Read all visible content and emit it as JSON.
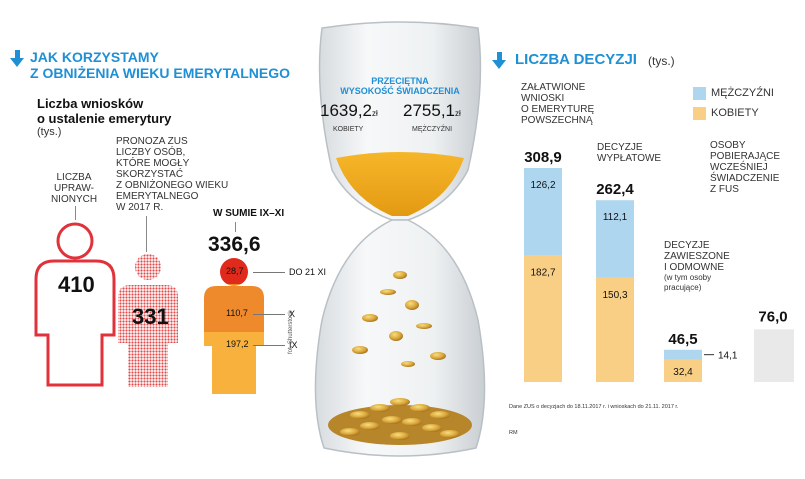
{
  "left_header": {
    "line1": "JAK KORZYSTAMY",
    "line2": "Z OBNIŻENIA WIEKU EMERYTALNEGO"
  },
  "applications": {
    "title_line1": "Liczba wniosków",
    "title_line2": "o ustalenie emerytury",
    "unit": "(tys.)",
    "entitled_label": [
      "LICZBA",
      "UPRAW-",
      "NIONYCH"
    ],
    "entitled_value": "410",
    "zus_label": [
      "PRONOZA ZUS",
      "LICZBY OSÓB,",
      "KTÓRE MOGŁY",
      "SKORZYSTAĆ",
      "Z OBNIŻONEGO WIEKU",
      "EMERYTALNEGO",
      "W 2017 R."
    ],
    "zus_value": "331",
    "sum_label": "W SUMIE IX–XI",
    "sum_value": "336,6",
    "months": [
      {
        "value": "28,7",
        "label": "DO 21 XI",
        "color": "#e02a1c"
      },
      {
        "value": "110,7",
        "label": "X",
        "color": "#ee8a2c"
      },
      {
        "value": "197,2",
        "label": "IX",
        "color": "#f7b13c"
      }
    ]
  },
  "benefit": {
    "title_line1": "PRZECIĘTNA",
    "title_line2": "WYSOKOŚĆ ŚWIADCZENIA",
    "women_value": "1639,2",
    "women_unit": "zł",
    "women_label": "KOBIETY",
    "men_value": "2755,1",
    "men_unit": "zł",
    "men_label": "MĘŻCZYŹNI",
    "photo_credit": "fot. Shutterstock"
  },
  "right_header": {
    "title": "LICZBA DECYZJI",
    "unit": "(tys.)"
  },
  "legend": [
    {
      "label": "MĘŻCZYŹNI",
      "color": "#aed6ef"
    },
    {
      "label": "KOBIETY",
      "color": "#f9cf86"
    }
  ],
  "chart_data": {
    "type": "bar",
    "stacked": true,
    "title": "LICZBA DECYZJI",
    "unit": "(tys.)",
    "series_names": [
      "MĘŻCZYŹNI",
      "KOBIETY"
    ],
    "bars": [
      {
        "label": [
          "ZAŁATWIONE",
          "WNIOSKI",
          "O EMERYTURĘ",
          "POWSZECHNĄ"
        ],
        "total": 308.9,
        "total_label": "308,9",
        "men": 126.2,
        "men_label": "126,2",
        "women": 182.7,
        "women_label": "182,7"
      },
      {
        "label": [
          "DECYZJE",
          "WYPŁATOWE"
        ],
        "total": 262.4,
        "total_label": "262,4",
        "men": 112.1,
        "men_label": "112,1",
        "women": 150.3,
        "women_label": "150,3"
      },
      {
        "label": [
          "DECYZJE",
          "ZAWIESZONE",
          "I ODMOWNE"
        ],
        "sublabel": [
          "(w tym osoby",
          "pracujące)"
        ],
        "total": 46.5,
        "total_label": "46,5",
        "men": 14.1,
        "men_label": "14,1",
        "women": 32.4,
        "women_label": "32,4"
      },
      {
        "label": [
          "OSOBY",
          "POBIERAJĄCE",
          "WCZEŚNIEJ",
          "ŚWIADCZENIE",
          "Z FUS"
        ],
        "total": 76.0,
        "total_label": "76,0",
        "men": null,
        "women": null
      }
    ]
  },
  "footnote": "Dane ZUS o decyzjach do 18.11.2017 r. i wnioskach do 21.11. 2017 r.",
  "author": "RM"
}
